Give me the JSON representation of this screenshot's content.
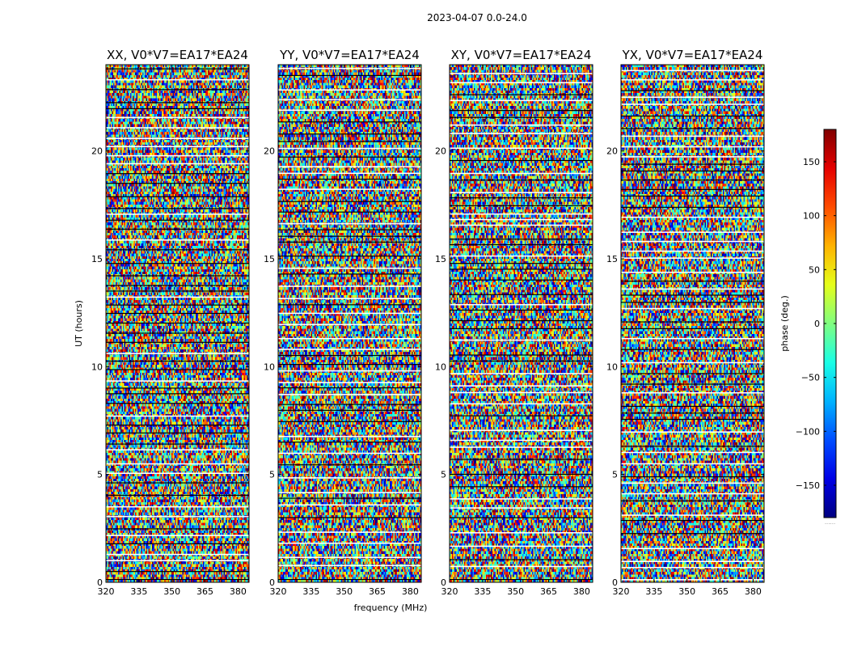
{
  "suptitle": "2023-04-07 0.0-24.0",
  "chart_data": {
    "type": "heatmap",
    "xlabel": "frequency (MHz)",
    "ylabel": "UT (hours)",
    "xlim": [
      320,
      385
    ],
    "ylim": [
      0,
      24
    ],
    "x_ticks": [
      "320",
      "335",
      "350",
      "365",
      "380"
    ],
    "y_ticks": [
      "0",
      "5",
      "10",
      "15",
      "20"
    ],
    "x_tick_values": [
      320,
      335,
      350,
      365,
      380
    ],
    "y_tick_values": [
      0,
      5,
      10,
      15,
      20
    ],
    "colormap": "jet",
    "colorbar": {
      "label": "phase (deg.)",
      "range": [
        -180,
        180
      ],
      "ticks": [
        "150",
        "100",
        "50",
        "0",
        "−50",
        "−100",
        "−150"
      ],
      "tick_values": [
        150,
        100,
        50,
        0,
        -50,
        -100,
        -150
      ],
      "bottom_text": "......"
    },
    "panels": [
      {
        "title": "XX, V0*V7=EA17*EA24",
        "polarization": "XX"
      },
      {
        "title": "YY, V0*V7=EA17*EA24",
        "polarization": "YY"
      },
      {
        "title": "XY, V0*V7=EA17*EA24",
        "polarization": "XY"
      },
      {
        "title": "YX, V0*V7=EA17*EA24",
        "polarization": "YX"
      }
    ]
  }
}
